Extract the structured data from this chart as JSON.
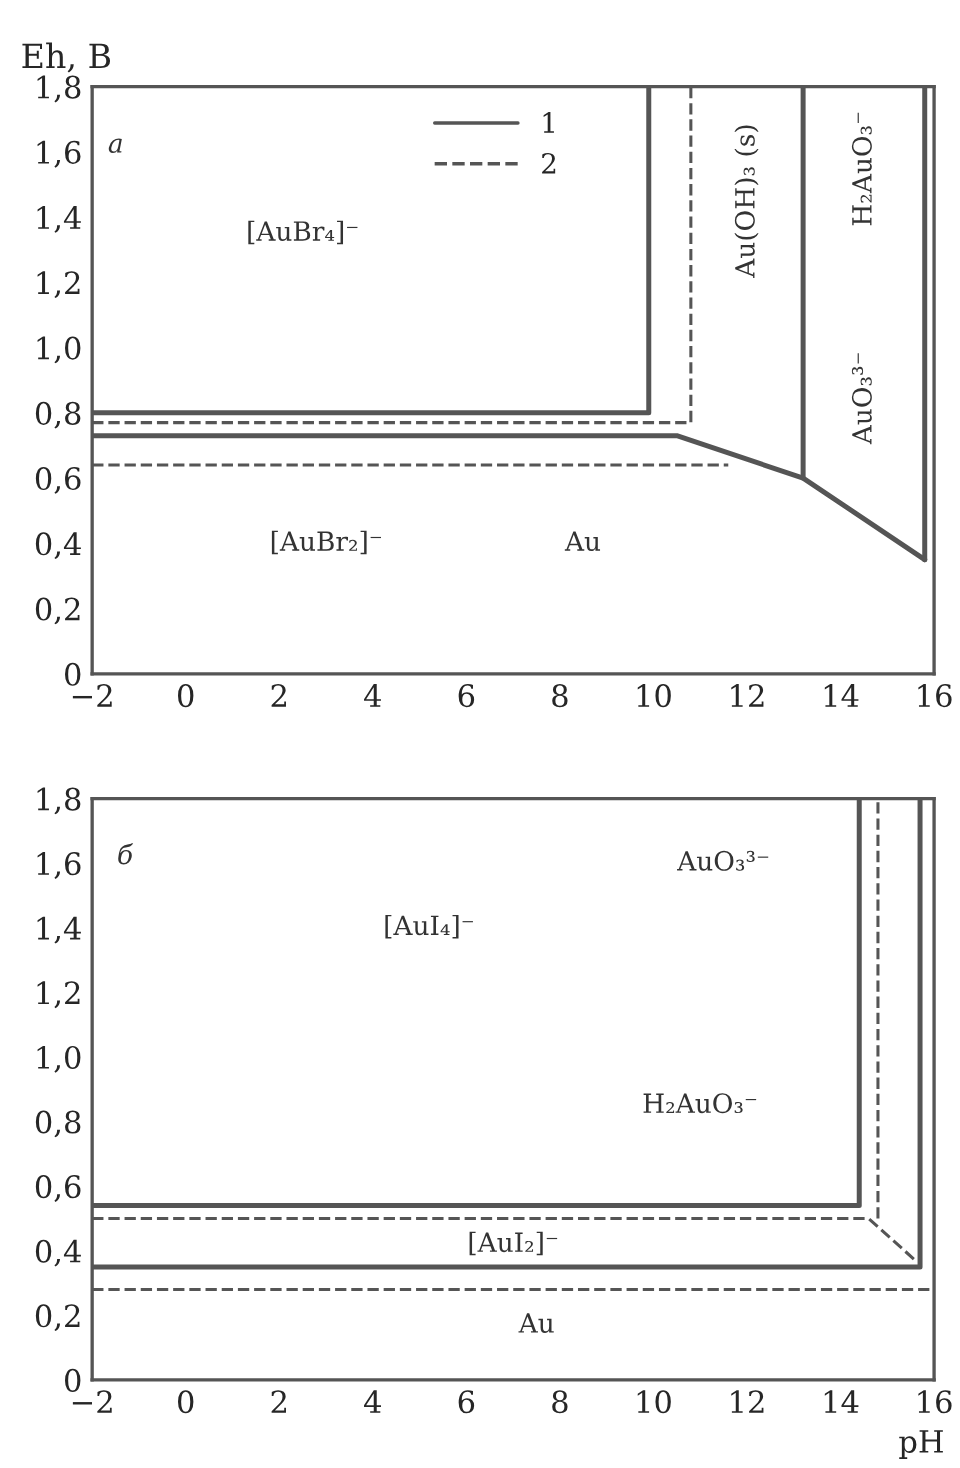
{
  "chart_data": [
    {
      "type": "line",
      "ylabel": "Eh, В",
      "xlim": [
        -2,
        16
      ],
      "ylim": [
        0,
        1.8
      ],
      "legend": "top",
      "grid": false,
      "marker": "none",
      "xticks": [
        {
          "value": -2,
          "label": "−2"
        },
        0,
        2,
        4,
        6,
        8,
        10,
        12,
        14,
        16
      ],
      "yticks": [
        0,
        {
          "value": 0.2,
          "label": "0,2"
        },
        {
          "value": 0.4,
          "label": "0,4"
        },
        {
          "value": 0.6,
          "label": "0,6"
        },
        {
          "value": 0.8,
          "label": "0,8"
        },
        {
          "value": 1.0,
          "label": "1,0"
        },
        {
          "value": 1.2,
          "label": "1,2"
        },
        {
          "value": 1.4,
          "label": "1,4"
        },
        {
          "value": 1.6,
          "label": "1,6"
        },
        {
          "value": 1.8,
          "label": "1,8"
        }
      ],
      "series": [
        {
          "name": "1",
          "color": "#555555",
          "line_style": "solid",
          "x": [
            -2,
            9.9,
            9.9
          ],
          "values": [
            0.8,
            0.8,
            1.8
          ]
        },
        {
          "color": "#555555",
          "line_style": "solid",
          "x": [
            -2,
            10.5,
            13.2,
            15.8
          ],
          "values": [
            0.73,
            0.73,
            0.6,
            0.35
          ]
        },
        {
          "color": "#555555",
          "line_style": "solid",
          "x": [
            13.2,
            13.2
          ],
          "values": [
            0.6,
            1.8
          ]
        },
        {
          "color": "#555555",
          "line_style": "solid",
          "x": [
            15.8,
            15.8
          ],
          "values": [
            0.35,
            1.8
          ]
        },
        {
          "name": "2",
          "color": "#555555",
          "line_style": "dashed",
          "x": [
            -2,
            10.8,
            10.8
          ],
          "values": [
            0.77,
            0.77,
            1.8
          ]
        },
        {
          "color": "#555555",
          "line_style": "dashed",
          "x": [
            -2,
            11.6
          ],
          "values": [
            0.64,
            0.64
          ]
        }
      ],
      "annotations": [
        "а",
        "[AuBr₄]⁻",
        "Au(OH)₃ (s)",
        "H₂AuO₃⁻",
        "AuO₃³⁻",
        "[AuBr₂]⁻",
        "Au"
      ]
    },
    {
      "type": "line",
      "xlabel": "pH",
      "xlim": [
        -2,
        16
      ],
      "ylim": [
        0,
        1.8
      ],
      "grid": false,
      "marker": "none",
      "xticks": [
        {
          "value": -2,
          "label": "−2"
        },
        0,
        2,
        4,
        6,
        8,
        10,
        12,
        14,
        16
      ],
      "yticks": [
        0,
        {
          "value": 0.2,
          "label": "0,2"
        },
        {
          "value": 0.4,
          "label": "0,4"
        },
        {
          "value": 0.6,
          "label": "0,6"
        },
        {
          "value": 0.8,
          "label": "0,8"
        },
        {
          "value": 1.0,
          "label": "1,0"
        },
        {
          "value": 1.2,
          "label": "1,2"
        },
        {
          "value": 1.4,
          "label": "1,4"
        },
        {
          "value": 1.6,
          "label": "1,6"
        },
        {
          "value": 1.8,
          "label": "1,8"
        }
      ],
      "series": [
        {
          "color": "#555555",
          "line_style": "solid",
          "x": [
            -2,
            14.4,
            14.4
          ],
          "values": [
            0.54,
            0.54,
            1.8
          ]
        },
        {
          "color": "#555555",
          "line_style": "solid",
          "x": [
            -2,
            15.7,
            15.7
          ],
          "values": [
            0.35,
            0.35,
            1.8
          ]
        },
        {
          "color": "#555555",
          "line_style": "dashed",
          "x": [
            -2,
            14.6,
            15.6
          ],
          "values": [
            0.5,
            0.5,
            0.37
          ]
        },
        {
          "color": "#555555",
          "line_style": "dashed",
          "x": [
            14.8,
            14.8
          ],
          "values": [
            0.5,
            1.8
          ]
        },
        {
          "color": "#555555",
          "line_style": "dashed",
          "x": [
            -2,
            15.9
          ],
          "values": [
            0.28,
            0.28
          ]
        }
      ],
      "annotations": [
        "б",
        "[AuI₄]⁻",
        "AuO₃³⁻",
        "H₂AuO₃⁻",
        "[AuI₂]⁻",
        "Au"
      ]
    }
  ]
}
